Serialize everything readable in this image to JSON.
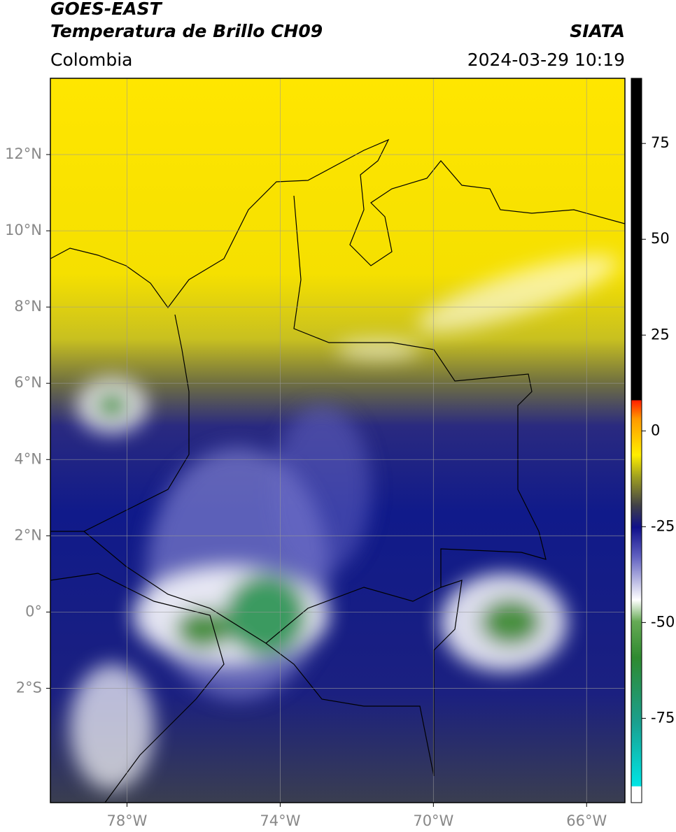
{
  "header": {
    "title": "GOES-EAST",
    "subtitle": "Temperatura de Brillo CH09",
    "source": "SIATA",
    "region": "Colombia",
    "datetime": "2024-03-29 10:19"
  },
  "map": {
    "latlim": [
      -5,
      14
    ],
    "lonlim": [
      -80,
      -65
    ],
    "lat_ticks": [
      {
        "value": 12,
        "label": "12°N"
      },
      {
        "value": 10,
        "label": "10°N"
      },
      {
        "value": 8,
        "label": "8°N"
      },
      {
        "value": 6,
        "label": "6°N"
      },
      {
        "value": 4,
        "label": "4°N"
      },
      {
        "value": 2,
        "label": "2°N"
      },
      {
        "value": 0,
        "label": "0°"
      },
      {
        "value": -2,
        "label": "2°S"
      }
    ],
    "lon_ticks": [
      {
        "value": -78,
        "label": "78°W"
      },
      {
        "value": -74,
        "label": "74°W"
      },
      {
        "value": -70,
        "label": "70°W"
      },
      {
        "value": -66,
        "label": "66°W"
      }
    ]
  },
  "colorbar": {
    "range": [
      -97,
      92
    ],
    "ticks": [
      75,
      50,
      25,
      0,
      -25,
      -50,
      -75
    ]
  }
}
